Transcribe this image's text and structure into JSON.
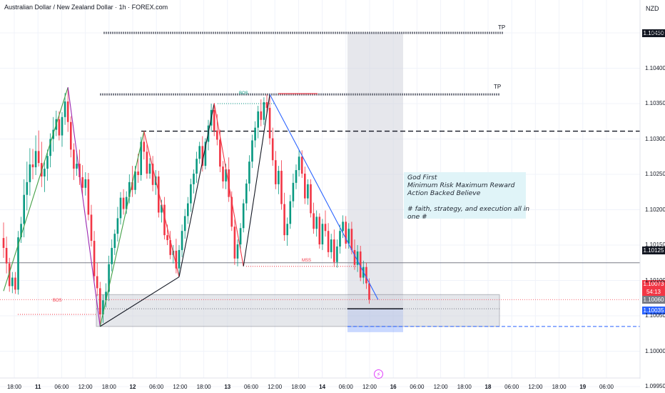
{
  "header": {
    "title": "Australian Dollar / New Zealand Dollar · 1h · FOREX.com",
    "currency": "NZD"
  },
  "note": {
    "lines": [
      "God First",
      "Minimum Risk Maximum Reward",
      "Action Backed Believe",
      "",
      "# faith, strategy, and execution all in",
      "one #"
    ]
  },
  "labels": {
    "tp_upper": "TP",
    "tp_lower": "TP",
    "bos_left": "BOS",
    "bos_top": "BOS",
    "mss": "MSS"
  },
  "price_tags": {
    "tp_level": "1.10450",
    "current_line": "1.10125",
    "last_price": "1.10073",
    "countdown": "54:13",
    "entry": "1.10060",
    "stop": "1.10035"
  },
  "colors": {
    "up": "#089981",
    "down": "#f23645",
    "accent_blue": "#2962ff",
    "note_bg": "#e0f4f8"
  },
  "icons": {
    "bolt": "lightning-icon"
  },
  "chart_data": {
    "type": "candlestick",
    "symbol": "AUDNZD",
    "timeframe": "1h",
    "ylim": [
      1.0993,
      1.1051
    ],
    "y_ticks": [
      "1.10450",
      "1.10400",
      "1.10350",
      "1.10300",
      "1.10250",
      "1.10200",
      "1.10150",
      "1.10100",
      "1.10050",
      "1.10000",
      "1.09950"
    ],
    "x_ticks": [
      "18:00",
      "11",
      "06:00",
      "12:00",
      "18:00",
      "12",
      "06:00",
      "12:00",
      "18:00",
      "13",
      "06:00",
      "12:00",
      "18:00",
      "14",
      "06:00",
      "12:00",
      "16",
      "06:00",
      "12:00",
      "18:00",
      "18",
      "06:00",
      "12:00",
      "18:00",
      "19",
      "06:00"
    ],
    "levels": {
      "tp_upper": 1.1045,
      "tp_lower": 1.10363,
      "structure_high": 1.10311,
      "current_line": 1.10125,
      "last_price": 1.10073,
      "entry": 1.1006,
      "stop": 1.10035
    },
    "swings": [
      {
        "t": 0,
        "p": 1.10085
      },
      {
        "t": 22,
        "p": 1.10373
      },
      {
        "t": 33,
        "p": 1.10035
      },
      {
        "t": 48,
        "p": 1.10311
      },
      {
        "t": 60,
        "p": 1.10105
      },
      {
        "t": 72,
        "p": 1.1035
      },
      {
        "t": 82,
        "p": 1.1012
      },
      {
        "t": 91,
        "p": 1.10363
      },
      {
        "t": 128,
        "p": 1.10073
      }
    ],
    "candles": [
      [
        1.1016,
        1.10182,
        1.10132,
        1.10146
      ],
      [
        1.10146,
        1.10162,
        1.1011,
        1.10124
      ],
      [
        1.10124,
        1.10132,
        1.10084,
        1.10092
      ],
      [
        1.10092,
        1.10112,
        1.10082,
        1.10104
      ],
      [
        1.10104,
        1.10112,
        1.10081,
        1.10087
      ],
      [
        1.10087,
        1.1017,
        1.1008,
        1.10161
      ],
      [
        1.10161,
        1.1019,
        1.10153,
        1.1018
      ],
      [
        1.1018,
        1.10243,
        1.10161,
        1.10221
      ],
      [
        1.10221,
        1.10268,
        1.10199,
        1.10239
      ],
      [
        1.10239,
        1.10287,
        1.1022,
        1.10264
      ],
      [
        1.10264,
        1.10286,
        1.10243,
        1.1026
      ],
      [
        1.1026,
        1.10305,
        1.10249,
        1.10283
      ],
      [
        1.10283,
        1.10312,
        1.10261,
        1.10266
      ],
      [
        1.10266,
        1.10296,
        1.10232,
        1.10247
      ],
      [
        1.10247,
        1.10269,
        1.10225,
        1.10258
      ],
      [
        1.10258,
        1.10285,
        1.10241,
        1.10276
      ],
      [
        1.10276,
        1.10308,
        1.1026,
        1.103
      ],
      [
        1.103,
        1.10331,
        1.10282,
        1.10313
      ],
      [
        1.10313,
        1.1034,
        1.10304,
        1.10328
      ],
      [
        1.10328,
        1.10339,
        1.10298,
        1.10305
      ],
      [
        1.10305,
        1.10338,
        1.10289,
        1.10331
      ],
      [
        1.10331,
        1.10365,
        1.1032,
        1.10353
      ],
      [
        1.10353,
        1.10373,
        1.1031,
        1.10324
      ],
      [
        1.10324,
        1.10332,
        1.10274,
        1.10285
      ],
      [
        1.10285,
        1.10294,
        1.10242,
        1.10258
      ],
      [
        1.10258,
        1.10283,
        1.10248,
        1.10265
      ],
      [
        1.10265,
        1.10285,
        1.10235,
        1.10246
      ],
      [
        1.10246,
        1.10263,
        1.10219,
        1.10231
      ],
      [
        1.10231,
        1.10253,
        1.1022,
        1.10243
      ],
      [
        1.10243,
        1.10252,
        1.10185,
        1.10193
      ],
      [
        1.10193,
        1.10207,
        1.10148,
        1.10156
      ],
      [
        1.10156,
        1.1017,
        1.10099,
        1.10106
      ],
      [
        1.10106,
        1.10125,
        1.10078,
        1.10089
      ],
      [
        1.10089,
        1.10098,
        1.10035,
        1.10052
      ],
      [
        1.10052,
        1.1008,
        1.1004,
        1.10072
      ],
      [
        1.10072,
        1.10096,
        1.10062,
        1.10084
      ],
      [
        1.10084,
        1.10135,
        1.10071,
        1.10123
      ],
      [
        1.10123,
        1.10158,
        1.10113,
        1.10146
      ],
      [
        1.10146,
        1.10172,
        1.10136,
        1.10166
      ],
      [
        1.10166,
        1.10204,
        1.10155,
        1.10188
      ],
      [
        1.10188,
        1.10225,
        1.10179,
        1.10217
      ],
      [
        1.10217,
        1.10229,
        1.10193,
        1.10201
      ],
      [
        1.10201,
        1.10226,
        1.10194,
        1.10218
      ],
      [
        1.10218,
        1.1025,
        1.10209,
        1.10239
      ],
      [
        1.10239,
        1.10262,
        1.10218,
        1.10228
      ],
      [
        1.10228,
        1.10262,
        1.10222,
        1.10254
      ],
      [
        1.10254,
        1.10279,
        1.10238,
        1.10249
      ],
      [
        1.10249,
        1.10303,
        1.10241,
        1.10296
      ],
      [
        1.10296,
        1.10311,
        1.10271,
        1.10282
      ],
      [
        1.10282,
        1.10292,
        1.10244,
        1.10251
      ],
      [
        1.10251,
        1.10273,
        1.10244,
        1.10265
      ],
      [
        1.10265,
        1.10276,
        1.10226,
        1.10235
      ],
      [
        1.10235,
        1.10256,
        1.10221,
        1.10247
      ],
      [
        1.10247,
        1.10255,
        1.10189,
        1.10196
      ],
      [
        1.10196,
        1.10214,
        1.10182,
        1.10207
      ],
      [
        1.10207,
        1.10218,
        1.10158,
        1.10164
      ],
      [
        1.10164,
        1.10179,
        1.1015,
        1.10157
      ],
      [
        1.10157,
        1.1017,
        1.1013,
        1.10136
      ],
      [
        1.10136,
        1.1015,
        1.10124,
        1.10142
      ],
      [
        1.10142,
        1.10159,
        1.1011,
        1.10117
      ],
      [
        1.10117,
        1.1015,
        1.10105,
        1.10143
      ],
      [
        1.10143,
        1.10179,
        1.10133,
        1.1017
      ],
      [
        1.1017,
        1.10201,
        1.10159,
        1.10191
      ],
      [
        1.10191,
        1.10218,
        1.1018,
        1.10209
      ],
      [
        1.10209,
        1.10244,
        1.10197,
        1.10236
      ],
      [
        1.10236,
        1.10257,
        1.10223,
        1.10251
      ],
      [
        1.10251,
        1.10282,
        1.10238,
        1.10272
      ],
      [
        1.10272,
        1.10296,
        1.10265,
        1.1029
      ],
      [
        1.1029,
        1.10304,
        1.10254,
        1.10262
      ],
      [
        1.10262,
        1.10301,
        1.10257,
        1.10296
      ],
      [
        1.10296,
        1.10327,
        1.10284,
        1.10319
      ],
      [
        1.10319,
        1.1035,
        1.1031,
        1.10341
      ],
      [
        1.10341,
        1.10351,
        1.10304,
        1.10312
      ],
      [
        1.10312,
        1.10335,
        1.10291,
        1.10299
      ],
      [
        1.10299,
        1.10313,
        1.10253,
        1.10261
      ],
      [
        1.10261,
        1.10269,
        1.1023,
        1.1024
      ],
      [
        1.1024,
        1.10265,
        1.10229,
        1.10257
      ],
      [
        1.10257,
        1.10274,
        1.10211,
        1.10218
      ],
      [
        1.10218,
        1.10226,
        1.1017,
        1.10176
      ],
      [
        1.10176,
        1.10186,
        1.10122,
        1.10131
      ],
      [
        1.10131,
        1.10158,
        1.1012,
        1.10151
      ],
      [
        1.10151,
        1.10181,
        1.10142,
        1.10174
      ],
      [
        1.10174,
        1.10215,
        1.10168,
        1.10209
      ],
      [
        1.10209,
        1.10243,
        1.10199,
        1.10237
      ],
      [
        1.10237,
        1.10277,
        1.10226,
        1.10268
      ],
      [
        1.10268,
        1.10306,
        1.10259,
        1.10298
      ],
      [
        1.10298,
        1.10325,
        1.10288,
        1.10316
      ],
      [
        1.10316,
        1.10347,
        1.10301,
        1.10339
      ],
      [
        1.10339,
        1.10356,
        1.10318,
        1.10327
      ],
      [
        1.10327,
        1.10359,
        1.1032,
        1.10352
      ],
      [
        1.10352,
        1.10363,
        1.10335,
        1.10344
      ],
      [
        1.10344,
        1.1036,
        1.10292,
        1.10301
      ],
      [
        1.10301,
        1.10316,
        1.10262,
        1.1027
      ],
      [
        1.1027,
        1.10283,
        1.10229,
        1.10236
      ],
      [
        1.10236,
        1.10262,
        1.10222,
        1.10255
      ],
      [
        1.10255,
        1.1027,
        1.102,
        1.10208
      ],
      [
        1.10208,
        1.10224,
        1.10156,
        1.10164
      ],
      [
        1.10164,
        1.10189,
        1.10149,
        1.1018
      ],
      [
        1.1018,
        1.10221,
        1.10173,
        1.10212
      ],
      [
        1.10212,
        1.10251,
        1.10203,
        1.10238
      ],
      [
        1.10238,
        1.10264,
        1.10229,
        1.10256
      ],
      [
        1.10256,
        1.10284,
        1.10247,
        1.10275
      ],
      [
        1.10275,
        1.10284,
        1.10245,
        1.10251
      ],
      [
        1.10251,
        1.10261,
        1.10208,
        1.10216
      ],
      [
        1.10216,
        1.10243,
        1.10207,
        1.10236
      ],
      [
        1.10236,
        1.10243,
        1.10189,
        1.10195
      ],
      [
        1.10195,
        1.1021,
        1.10166,
        1.10173
      ],
      [
        1.10173,
        1.10199,
        1.10162,
        1.1019
      ],
      [
        1.1019,
        1.10195,
        1.10145,
        1.10151
      ],
      [
        1.10151,
        1.10187,
        1.10143,
        1.1018
      ],
      [
        1.1018,
        1.10199,
        1.10162,
        1.1017
      ],
      [
        1.1017,
        1.10181,
        1.10133,
        1.1014
      ],
      [
        1.1014,
        1.10166,
        1.10131,
        1.10158
      ],
      [
        1.10158,
        1.10172,
        1.10119,
        1.10126
      ],
      [
        1.10126,
        1.10158,
        1.10118,
        1.10148
      ],
      [
        1.10148,
        1.10179,
        1.10138,
        1.1017
      ],
      [
        1.1017,
        1.10192,
        1.1016,
        1.10183
      ],
      [
        1.10183,
        1.10191,
        1.10145,
        1.10152
      ],
      [
        1.10152,
        1.10181,
        1.10145,
        1.10173
      ],
      [
        1.10173,
        1.10183,
        1.10137,
        1.10143
      ],
      [
        1.10143,
        1.10158,
        1.10115,
        1.10122
      ],
      [
        1.10122,
        1.1015,
        1.10112,
        1.10141
      ],
      [
        1.10141,
        1.10149,
        1.10099,
        1.10104
      ],
      [
        1.10104,
        1.10128,
        1.10095,
        1.10119
      ],
      [
        1.10119,
        1.10125,
        1.10088,
        1.10096
      ],
      [
        1.10096,
        1.10103,
        1.10067,
        1.10073
      ]
    ]
  }
}
